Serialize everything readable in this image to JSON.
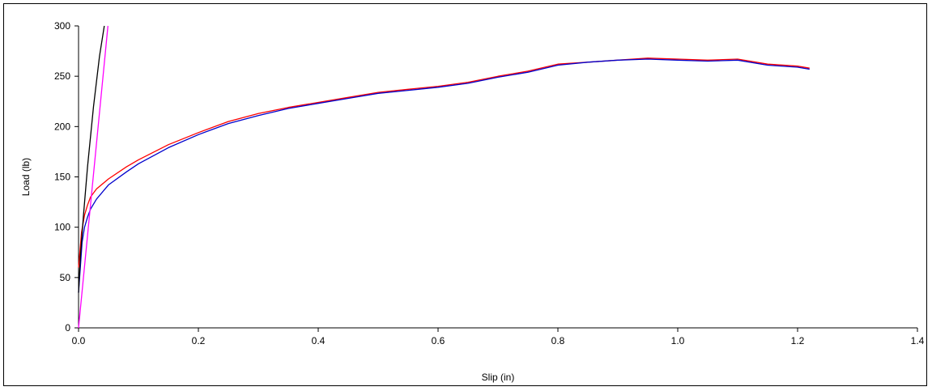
{
  "chart_data": {
    "type": "line",
    "title": "",
    "xlabel": "Slip (in)",
    "ylabel": "Load (lb)",
    "xlim": [
      0,
      1.4
    ],
    "ylim": [
      0,
      300
    ],
    "x_ticks": [
      "0.0",
      "0.2",
      "0.4",
      "0.6",
      "0.8",
      "1.0",
      "1.2",
      "1.4"
    ],
    "y_ticks": [
      "0",
      "50",
      "100",
      "150",
      "200",
      "250",
      "300"
    ],
    "grid": false,
    "legend": "none",
    "series": [
      {
        "color": "#ff0000",
        "x": [
          0.0,
          0.005,
          0.01,
          0.015,
          0.02,
          0.03,
          0.05,
          0.08,
          0.1,
          0.15,
          0.2,
          0.25,
          0.3,
          0.35,
          0.4,
          0.45,
          0.5,
          0.55,
          0.6,
          0.65,
          0.7,
          0.75,
          0.8,
          0.85,
          0.9,
          0.95,
          1.0,
          1.05,
          1.1,
          1.15,
          1.2,
          1.22
        ],
        "y": [
          60,
          95,
          112,
          122,
          130,
          138,
          148,
          160,
          167,
          182,
          194,
          205,
          213,
          219,
          224,
          229,
          234,
          237,
          240,
          244,
          250,
          255,
          262,
          264,
          266,
          268,
          267,
          266,
          267,
          262,
          260,
          258
        ]
      },
      {
        "color": "#0000cc",
        "x": [
          0.0,
          0.003,
          0.006,
          0.01,
          0.015,
          0.02,
          0.03,
          0.05,
          0.08,
          0.1,
          0.15,
          0.2,
          0.25,
          0.3,
          0.35,
          0.4,
          0.45,
          0.5,
          0.55,
          0.6,
          0.65,
          0.7,
          0.75,
          0.8,
          0.85,
          0.9,
          0.95,
          1.0,
          1.05,
          1.1,
          1.15,
          1.2,
          1.22
        ],
        "y": [
          35,
          60,
          85,
          100,
          110,
          118,
          128,
          142,
          155,
          163,
          179,
          192,
          203,
          211,
          218,
          223,
          228,
          233,
          236,
          239,
          243,
          249,
          254,
          261,
          264,
          266,
          267,
          266,
          265,
          266,
          261,
          259,
          257
        ]
      },
      {
        "color": "#000000",
        "x": [
          0.0,
          0.003,
          0.008,
          0.015,
          0.025,
          0.035,
          0.043
        ],
        "y": [
          35,
          70,
          110,
          160,
          220,
          270,
          300
        ]
      },
      {
        "color": "#ff00ff",
        "x": [
          0.0,
          0.049
        ],
        "y": [
          0,
          300
        ]
      }
    ]
  }
}
